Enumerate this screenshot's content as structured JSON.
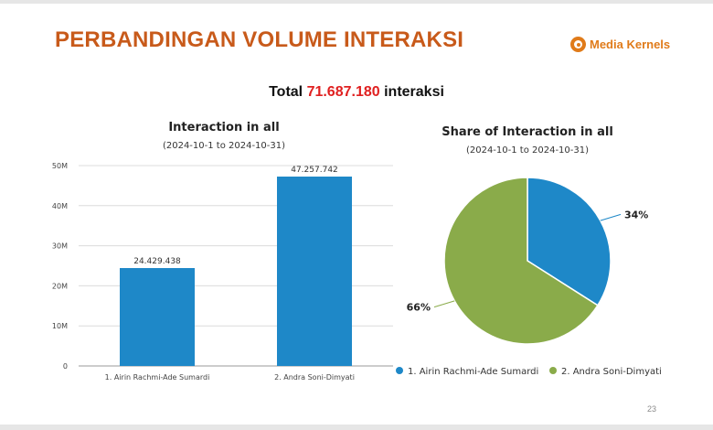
{
  "slide": {
    "title": "PERBANDINGAN VOLUME INTERAKSI",
    "logo_text": "Media Kernels",
    "total_prefix": "Total",
    "total_value": "71.687.180",
    "total_suffix": "interaksi",
    "page_number": "23"
  },
  "colors": {
    "series1": "#1e88c8",
    "series2": "#8aab4a",
    "title": "#c85a1a",
    "total": "#e02020"
  },
  "chart_data": [
    {
      "type": "bar",
      "title": "Interaction in all",
      "subtitle": "(2024-10-1 to 2024-10-31)",
      "categories": [
        "1. Airin Rachmi-Ade Sumardi",
        "2. Andra Soni-Dimyati"
      ],
      "values": [
        24429438,
        47257742
      ],
      "data_labels": [
        "24.429.438",
        "47.257.742"
      ],
      "ylim": [
        0,
        50000000
      ],
      "yticks": [
        0,
        10000000,
        20000000,
        30000000,
        40000000,
        50000000
      ],
      "ytick_labels": [
        "0",
        "10M",
        "20M",
        "30M",
        "40M",
        "50M"
      ],
      "grid": true
    },
    {
      "type": "pie",
      "title": "Share of Interaction in all",
      "subtitle": "(2024-10-1 to 2024-10-31)",
      "labels": [
        "1. Airin Rachmi-Ade Sumardi",
        "2. Andra Soni-Dimyati"
      ],
      "values": [
        34,
        66
      ],
      "value_labels": [
        "34%",
        "66%"
      ],
      "legend": "bottom"
    }
  ]
}
